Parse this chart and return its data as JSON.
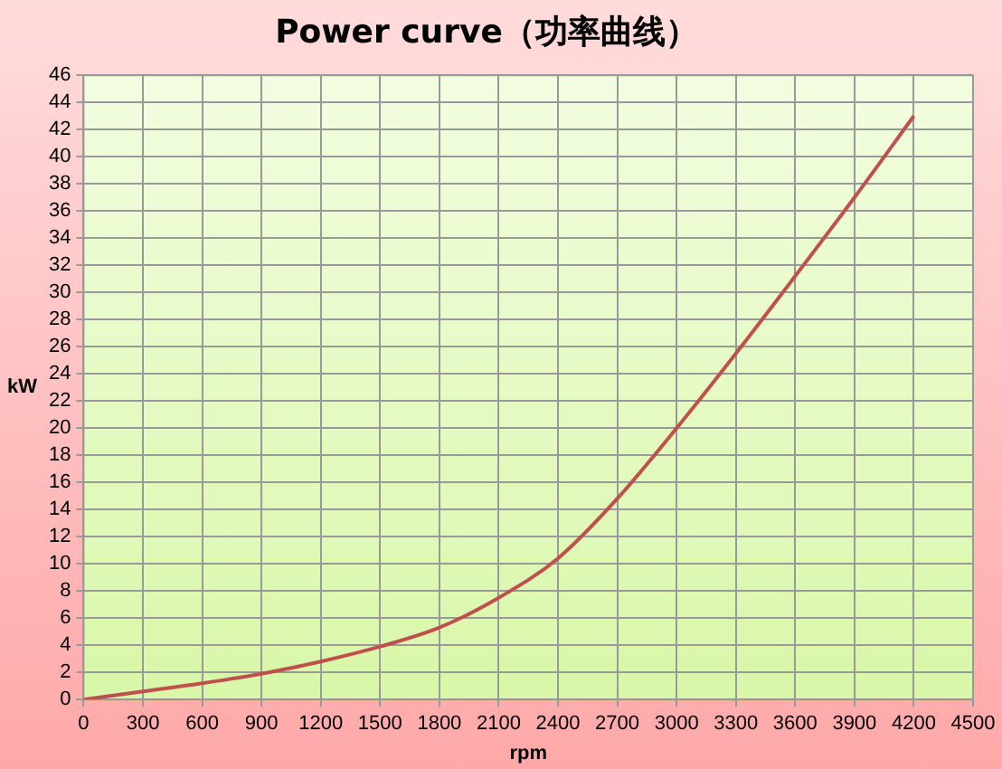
{
  "chart_data": {
    "type": "line",
    "title": "Power curve（功率曲线）",
    "xlabel": "rpm",
    "ylabel": "kW",
    "x": [
      0,
      300,
      600,
      900,
      1200,
      1500,
      1800,
      2100,
      2400,
      2700,
      3000,
      3300,
      3600,
      3900,
      4200
    ],
    "series": [
      {
        "color": "#c0504d",
        "values": [
          0,
          0.6,
          1.2,
          1.9,
          2.8,
          3.9,
          5.3,
          7.5,
          10.4,
          14.8,
          20,
          25.5,
          31.2,
          37,
          43
        ]
      }
    ],
    "xlim": [
      0,
      4500
    ],
    "xticks": [
      0,
      300,
      600,
      900,
      1200,
      1500,
      1800,
      2100,
      2400,
      2700,
      3000,
      3300,
      3600,
      3900,
      4200,
      4500
    ],
    "ylim": [
      0,
      46
    ],
    "yticks": [
      0,
      2,
      4,
      6,
      8,
      10,
      12,
      14,
      16,
      18,
      20,
      22,
      24,
      26,
      28,
      30,
      32,
      34,
      36,
      38,
      40,
      42,
      44,
      46
    ],
    "grid": true,
    "legend": false,
    "marker": "none",
    "line_style": "solid"
  }
}
